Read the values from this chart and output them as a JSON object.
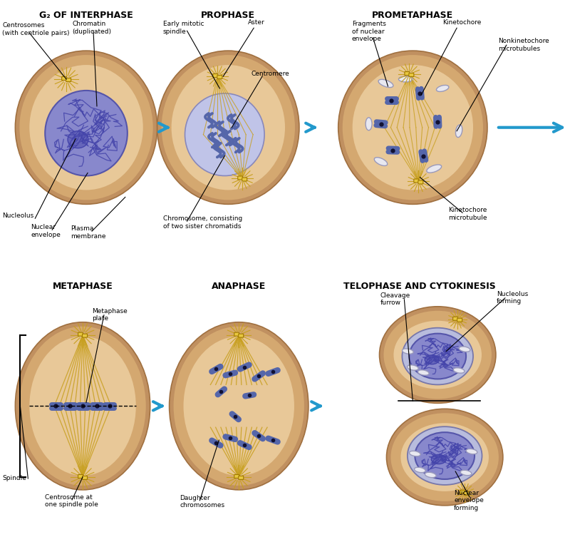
{
  "bg_color": "#ffffff",
  "cell_outer_fill": "#c8956a",
  "cell_inner_fill": "#d4a574",
  "cell_halo_fill": "#e8c8a0",
  "nucleus_fill_g2": "#8888cc",
  "nucleus_fill_prophase": "#b8bcdd",
  "nucleus_fill_telophase": "#b8bcdd",
  "chromosome_color": "#5566aa",
  "spindle_color": "#c8a020",
  "centrosome_color": "#e8c840",
  "arrow_color": "#2299cc",
  "fragment_fill": "#e8e8f0",
  "fragment_edge": "#9999bb",
  "stages_row1": [
    "G₂ OF INTERPHASE",
    "PROPHASE",
    "PROMETAPHASE"
  ],
  "stages_row2": [
    "METAPHASE",
    "ANAPHASE",
    "TELOPHASE AND CYTOKINESIS"
  ]
}
